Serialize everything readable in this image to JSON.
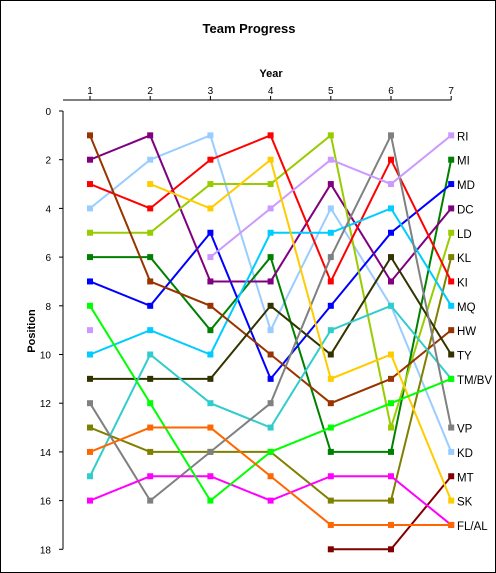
{
  "chart_data": {
    "type": "line",
    "title": "Team Progress",
    "xlabel": "Year",
    "ylabel": "Position",
    "x": [
      1,
      2,
      3,
      4,
      5,
      6,
      7
    ],
    "y_ticks": [
      0,
      2,
      4,
      6,
      8,
      10,
      12,
      14,
      16,
      18
    ],
    "ylim": [
      0,
      18
    ],
    "y_reversed": true,
    "x_axis_position": "top",
    "grid": false,
    "legend": "series labels at right end of lines",
    "series": [
      {
        "name": "KD",
        "color": "#99CCFF",
        "values": [
          4,
          2,
          1,
          9,
          4,
          8,
          14
        ]
      },
      {
        "name": "MI",
        "color": "#008000",
        "values": [
          6,
          6,
          9,
          6,
          14,
          14,
          2
        ]
      },
      {
        "name": "MD",
        "color": "#0000FF",
        "values": [
          7,
          8,
          5,
          11,
          8,
          5,
          3
        ]
      },
      {
        "name": "DC",
        "color": "#800080",
        "values": [
          2,
          1,
          7,
          7,
          3,
          7,
          4
        ]
      },
      {
        "name": "LD",
        "color": "#99CC00",
        "values": [
          5,
          5,
          3,
          3,
          1,
          13,
          5
        ]
      },
      {
        "name": "KL",
        "color": "#808000",
        "values": [
          13,
          14,
          14,
          14,
          16,
          16,
          6
        ]
      },
      {
        "name": "KI",
        "color": "#FF0000",
        "values": [
          3,
          4,
          2,
          1,
          7,
          2,
          7
        ]
      },
      {
        "name": "MQ",
        "color": "#00CCFF",
        "values": [
          10,
          9,
          10,
          5,
          5,
          4,
          8
        ]
      },
      {
        "name": "HW",
        "color": "#993300",
        "values": [
          1,
          7,
          8,
          10,
          12,
          11,
          9
        ]
      },
      {
        "name": "TY",
        "color": "#333300",
        "values": [
          11,
          11,
          11,
          8,
          10,
          6,
          10
        ]
      },
      {
        "name": "TM/BV",
        "color": "#33CCCC",
        "values": [
          15,
          10,
          12,
          13,
          9,
          8,
          11
        ]
      },
      {
        "name": "VP",
        "color": "#808080",
        "values": [
          12,
          16,
          14,
          12,
          6,
          1,
          13
        ]
      },
      {
        "name": "RI",
        "color": "#CC99FF",
        "values": [
          9,
          null,
          6,
          4,
          2,
          3,
          1
        ]
      },
      {
        "name": "MT",
        "color": "#800000",
        "values": [
          null,
          null,
          null,
          null,
          18,
          18,
          15
        ]
      },
      {
        "name": "SK",
        "color": "#FFCC00",
        "values": [
          null,
          3,
          4,
          2,
          11,
          10,
          16
        ]
      },
      {
        "name": "FL/AL",
        "color": "#FF00FF",
        "values": [
          16,
          15,
          15,
          16,
          15,
          15,
          17
        ]
      },
      {
        "name": "",
        "color": "#00FF00",
        "values": [
          8,
          12,
          16,
          14,
          13,
          12,
          11
        ]
      },
      {
        "name": "",
        "color": "#FF6600",
        "values": [
          14,
          13,
          13,
          15,
          17,
          17,
          17
        ]
      }
    ]
  }
}
